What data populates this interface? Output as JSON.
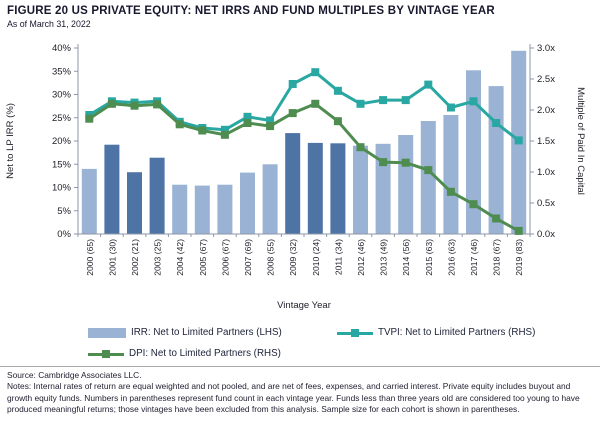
{
  "header": {
    "title": "FIGURE 20 US PRIVATE EQUITY: NET IRRS AND FUND MULTIPLES BY VINTAGE YEAR",
    "as_of": "As of March 31, 2022"
  },
  "chart_data": {
    "type": "bar+line",
    "categories": [
      "2000 (65)",
      "2001 (30)",
      "2002 (21)",
      "2003 (25)",
      "2004 (42)",
      "2005 (67)",
      "2006 (67)",
      "2007 (69)",
      "2008 (55)",
      "2009 (32)",
      "2010 (24)",
      "2011 (34)",
      "2012 (46)",
      "2013 (49)",
      "2014 (56)",
      "2015 (63)",
      "2016 (63)",
      "2017 (46)",
      "2018 (67)",
      "2019 (83)"
    ],
    "series": [
      {
        "name": "IRR: Net to Limited Partners (LHS)",
        "type": "bar",
        "axis": "left",
        "unit": "%",
        "values": [
          14.0,
          19.2,
          13.3,
          16.4,
          10.6,
          10.4,
          10.6,
          13.2,
          15.0,
          21.7,
          19.6,
          19.5,
          19.0,
          19.4,
          21.3,
          24.3,
          25.6,
          35.2,
          31.8,
          39.4
        ],
        "emphasis": [
          0,
          1,
          1,
          1,
          0,
          0,
          0,
          0,
          0,
          1,
          1,
          1,
          0,
          0,
          0,
          0,
          0,
          0,
          0,
          0
        ]
      },
      {
        "name": "TVPI: Net to Limited Partners (RHS)",
        "type": "line",
        "axis": "right",
        "unit": "x",
        "values": [
          1.92,
          2.14,
          2.12,
          2.14,
          1.81,
          1.71,
          1.68,
          1.89,
          1.83,
          2.42,
          2.61,
          2.31,
          2.1,
          2.16,
          2.16,
          2.41,
          2.04,
          2.14,
          1.79,
          1.51
        ]
      },
      {
        "name": "DPI: Net to Limited Partners (RHS)",
        "type": "line",
        "axis": "right",
        "unit": "x",
        "values": [
          1.86,
          2.1,
          2.07,
          2.09,
          1.77,
          1.67,
          1.6,
          1.79,
          1.74,
          1.95,
          2.1,
          1.82,
          1.4,
          1.16,
          1.15,
          1.03,
          0.68,
          0.48,
          0.25,
          0.05
        ]
      }
    ],
    "left_axis": {
      "label": "Net to LP IRR (%)",
      "min": 0,
      "max": 40,
      "step": 5,
      "suffix": "%",
      "decimals": 0
    },
    "right_axis": {
      "label": "Multiple of Paid In Capital",
      "min": 0,
      "max": 3,
      "step": 0.5,
      "suffix": "x",
      "decimals": 1
    },
    "xlabel": "Vintage Year",
    "grid": false,
    "legend_position": "bottom"
  },
  "legend": {
    "irr": "IRR: Net to Limited Partners (LHS)",
    "tvpi": "TVPI: Net to Limited Partners (RHS)",
    "dpi": "DPI: Net to Limited Partners (RHS)"
  },
  "colors": {
    "bar_light": "#9AB2D3",
    "bar_dark": "#4E74A6",
    "tvpi": "#29A7A2",
    "dpi": "#4E8C50",
    "axis": "#8d97a8",
    "tick_text": "#1d1d28",
    "title_text": "#17172e"
  },
  "footer": {
    "source": "Source: Cambridge Associates LLC.",
    "notes": "Notes: Internal rates of return are equal weighted and not pooled, and are net of fees, expenses, and carried interest. Private equity includes buyout and growth equity funds. Numbers in parentheses represent fund count in each vintage year. Funds less than three years old are considered too young to have produced meaningful returns; those vintages have been excluded from this analysis. Sample size for each cohort is shown in parentheses."
  }
}
